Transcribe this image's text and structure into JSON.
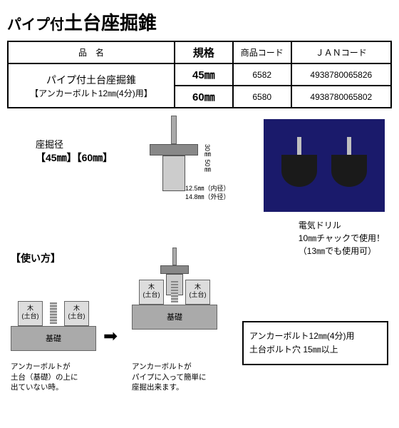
{
  "title": {
    "prefix": "パイプ付",
    "main": "土台座掘錐"
  },
  "table": {
    "headers": {
      "name": "品　名",
      "spec": "規格",
      "code": "商品コード",
      "jan": "ＪＡＮコード"
    },
    "nameRow1": "パイプ付土台座掘錐",
    "nameRow2": "【アンカーボルト12㎜(4分)用】",
    "rows": [
      {
        "spec": "45㎜",
        "code": "6582",
        "jan": "4938780065826"
      },
      {
        "spec": "60㎜",
        "code": "6580",
        "jan": "4938780065802"
      }
    ]
  },
  "sakukei": {
    "label": "座掘径",
    "val": "【45㎜】【60㎜】"
  },
  "dims": {
    "h": "50㎜",
    "v": "30㎜",
    "inner": "12.5㎜（内径）",
    "outer": "14.8㎜（外径）"
  },
  "drillText": {
    "l1": "電気ドリル",
    "l2": "10㎜チャックで使用！",
    "l3": "（13㎜でも使用可）"
  },
  "usage": "【使い方】",
  "wood": "木\n(土台)",
  "foundation": "基礎",
  "arrow": "➡",
  "cap1": "アンカーボルトが\n土台（基礎）の上に\n出ていない時。",
  "cap2": "アンカーボルトが\nパイプに入って簡単に\n座掘出来ます。",
  "noteBox": {
    "l1": "アンカーボルト12㎜(4分)用",
    "l2": "土台ボルト穴 15㎜以上"
  }
}
